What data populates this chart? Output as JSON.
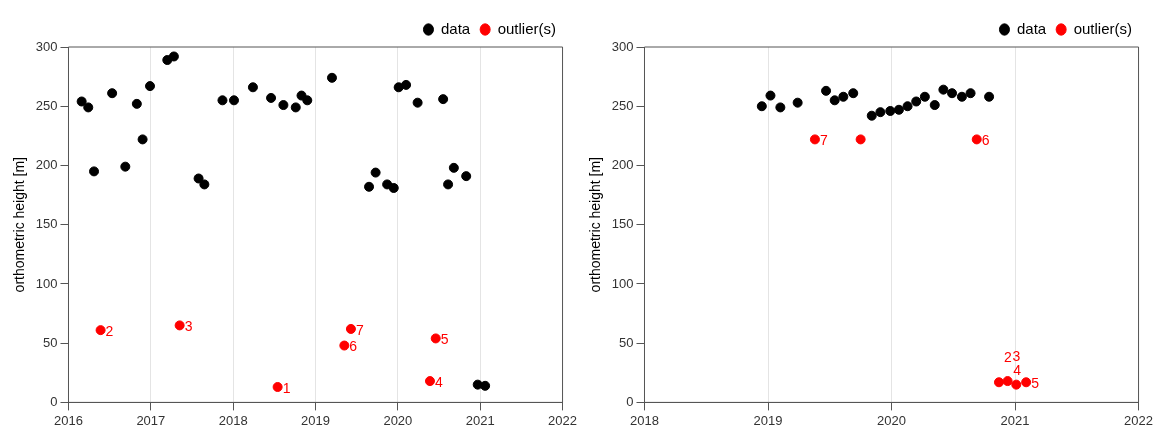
{
  "chart_data": [
    {
      "type": "scatter",
      "ylabel": "orthometric height [m]",
      "xlim": [
        2016,
        2022
      ],
      "xticks": [
        2016,
        2017,
        2018,
        2019,
        2020,
        2021,
        2022
      ],
      "ylim": [
        0,
        300
      ],
      "yticks": [
        0,
        50,
        100,
        150,
        200,
        250,
        300
      ],
      "grid": "x",
      "legend": "top right",
      "marker": "circle",
      "series": [
        {
          "name": "data",
          "color": "#000000",
          "x": [
            2016.16,
            2016.24,
            2016.31,
            2016.53,
            2016.69,
            2016.83,
            2016.9,
            2016.99,
            2017.2,
            2017.28,
            2017.58,
            2017.65,
            2017.87,
            2018.01,
            2018.24,
            2018.46,
            2018.61,
            2018.76,
            2018.83,
            2018.9,
            2019.2,
            2019.65,
            2019.73,
            2019.87,
            2019.95,
            2020.01,
            2020.1,
            2020.24,
            2020.55,
            2020.61,
            2020.68,
            2020.83,
            2020.97,
            2021.06
          ],
          "values": [
            254,
            249,
            195,
            261,
            199,
            252,
            222,
            267,
            289,
            292,
            189,
            184,
            255,
            255,
            266,
            257,
            251,
            249,
            259,
            255,
            274,
            182,
            194,
            184,
            181,
            266,
            268,
            253,
            256,
            184,
            198,
            191,
            15,
            14
          ]
        },
        {
          "name": "outlier(s)",
          "color": "#ff0000",
          "x": [
            2016.39,
            2017.35,
            2018.54,
            2019.35,
            2019.43,
            2020.39,
            2020.46
          ],
          "values": [
            61,
            65,
            13,
            48,
            62,
            18,
            54
          ]
        }
      ],
      "annotations": [
        {
          "text": "2",
          "x": 2016.39,
          "y": 61
        },
        {
          "text": "3",
          "x": 2017.35,
          "y": 65
        },
        {
          "text": "1",
          "x": 2018.54,
          "y": 13
        },
        {
          "text": "6",
          "x": 2019.35,
          "y": 48
        },
        {
          "text": "7",
          "x": 2019.43,
          "y": 62
        },
        {
          "text": "4",
          "x": 2020.39,
          "y": 18
        },
        {
          "text": "5",
          "x": 2020.46,
          "y": 54
        }
      ]
    },
    {
      "type": "scatter",
      "ylabel": "orthometric height [m]",
      "xlim": [
        2018,
        2022
      ],
      "xticks": [
        2018,
        2019,
        2020,
        2021,
        2022
      ],
      "ylim": [
        0,
        300
      ],
      "yticks": [
        0,
        50,
        100,
        150,
        200,
        250,
        300
      ],
      "grid": "x",
      "legend": "top right",
      "marker": "circle",
      "series": [
        {
          "name": "data",
          "color": "#000000",
          "x": [
            2018.95,
            2019.02,
            2019.1,
            2019.24,
            2019.47,
            2019.54,
            2019.61,
            2019.69,
            2019.84,
            2019.91,
            2019.99,
            2020.06,
            2020.13,
            2020.2,
            2020.27,
            2020.35,
            2020.42,
            2020.49,
            2020.57,
            2020.64,
            2020.79
          ],
          "values": [
            250,
            259,
            249,
            253,
            263,
            255,
            258,
            261,
            242,
            245,
            246,
            247,
            250,
            254,
            258,
            251,
            264,
            261,
            258,
            261,
            258
          ]
        },
        {
          "name": "outlier(s)",
          "color": "#ff0000",
          "x": [
            2019.38,
            2019.75,
            2020.69,
            2020.87,
            2020.94,
            2021.01,
            2021.09
          ],
          "values": [
            222,
            222,
            222,
            17,
            18,
            15,
            17
          ]
        }
      ],
      "annotations": [
        {
          "text": "7",
          "x": 2019.38,
          "y": 222
        },
        {
          "text": "6",
          "x": 2020.69,
          "y": 222
        },
        {
          "text": "2",
          "x": 2020.87,
          "y": 17
        },
        {
          "text": "3",
          "x": 2020.94,
          "y": 18
        },
        {
          "text": "4",
          "x": 2021.01,
          "y": 15
        },
        {
          "text": "5",
          "x": 2021.09,
          "y": 17
        }
      ]
    }
  ]
}
